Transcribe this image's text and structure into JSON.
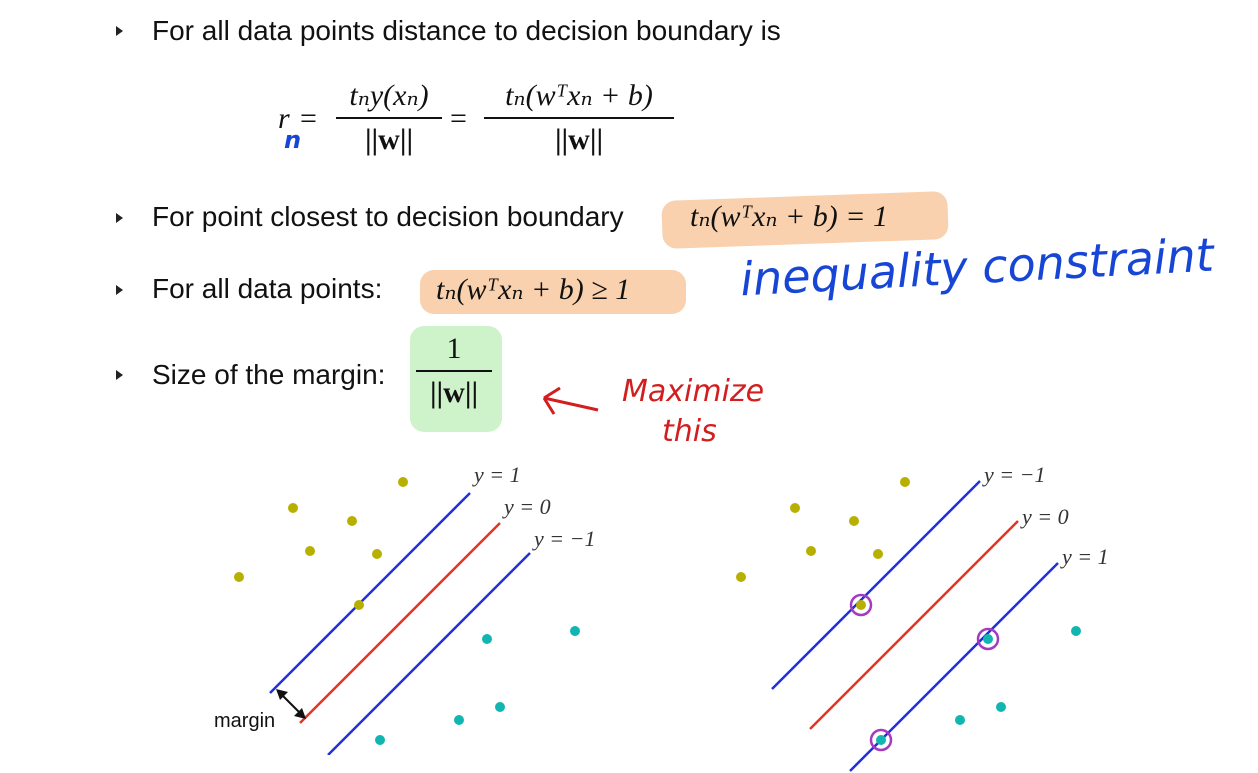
{
  "bullets": [
    {
      "text": "For all data points distance to decision boundary is"
    },
    {
      "text": "For point closest to decision boundary"
    },
    {
      "text": "For all data points:"
    },
    {
      "text": "Size of the margin:"
    }
  ],
  "equation1": {
    "lhs": "r",
    "lhs_handwritten_sub": "n",
    "frac1_num": "tₙy(xₙ)",
    "frac1_den": "||w||",
    "frac2_num": "tₙ(wᵀxₙ + b)",
    "frac2_den": "||w||"
  },
  "equation2": "tₙ(wᵀxₙ + b) = 1",
  "equation3": "tₙ(wᵀxₙ + b) ≥ 1",
  "equation4": {
    "num": "1",
    "den": "||w||"
  },
  "annotations": {
    "inequality": "inequality constraint",
    "maximize_line1": "Maximize",
    "maximize_line2": "this"
  },
  "left_plot": {
    "labels": [
      "y = 1",
      "y = 0",
      "y = −1"
    ],
    "margin_label": "margin"
  },
  "right_plot": {
    "labels": [
      "y = −1",
      "y = 0",
      "y = 1"
    ]
  },
  "colors": {
    "class_a": "#b8b000",
    "class_b": "#12b5b0",
    "boundary": "#e8321e",
    "margin_lines": "#1f2fe0",
    "support_circle": "#a43ac0",
    "highlight_orange": "#f8c9a0",
    "highlight_green": "#c9f2c4",
    "ink_blue": "#1746d6",
    "ink_red": "#d21e1e"
  }
}
